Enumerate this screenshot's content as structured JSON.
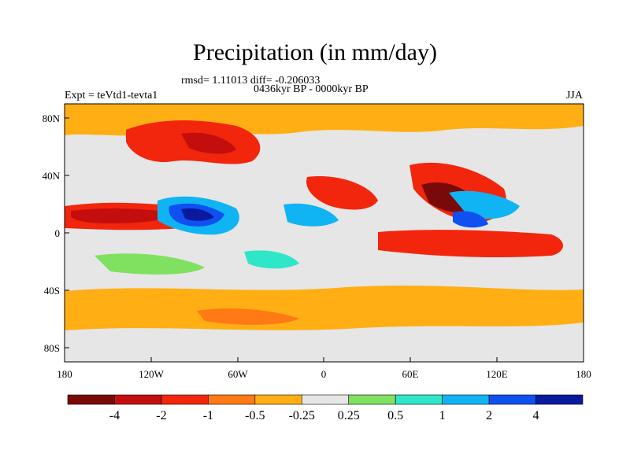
{
  "title": "Precipitation (in mm/day)",
  "stats": "rmsd= 1.11013 diff= -0.206033",
  "period": "0436kyr BP - 0000kyr BP",
  "expt": "Expt = teVtd1-tevta1",
  "season": "JJA",
  "y_ticks": [
    "80N",
    "40N",
    "0",
    "40S",
    "80S"
  ],
  "x_ticks": [
    "180",
    "120W",
    "60W",
    "0",
    "60E",
    "120E",
    "180"
  ],
  "colorbar": {
    "colors": [
      "#7a0a0a",
      "#c40e0e",
      "#f2260c",
      "#ff7a14",
      "#ffae14",
      "#e6e6e6",
      "#80e060",
      "#30e6c8",
      "#10b4f2",
      "#1050f0",
      "#0a1a9e"
    ],
    "labels": [
      "-4",
      "-2",
      "-1",
      "-0.5",
      "-0.25",
      "0.25",
      "0.5",
      "1",
      "2",
      "4"
    ]
  }
}
